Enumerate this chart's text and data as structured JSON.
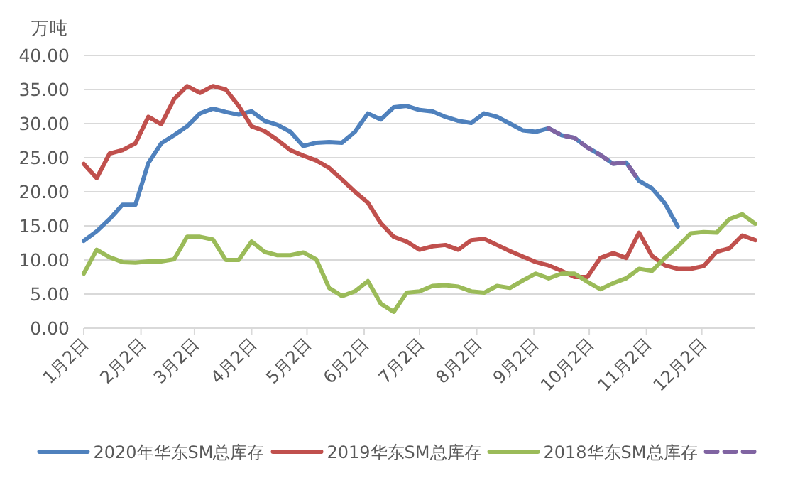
{
  "chart_data": {
    "type": "line",
    "ylabel": "万吨",
    "x": [
      "--01-02",
      "--01-09",
      "--01-16",
      "--01-23",
      "--01-30",
      "--02-06",
      "--02-13",
      "--02-20",
      "--02-27",
      "--03-05",
      "--03-12",
      "--03-19",
      "--03-26",
      "--04-02",
      "--04-09",
      "--04-16",
      "--04-23",
      "--04-30",
      "--05-07",
      "--05-14",
      "--05-21",
      "--05-28",
      "--06-04",
      "--06-11",
      "--06-18",
      "--06-25",
      "--07-02",
      "--07-09",
      "--07-16",
      "--07-23",
      "--07-30",
      "--08-06",
      "--08-13",
      "--08-20",
      "--08-27",
      "--09-03",
      "--09-10",
      "--09-17",
      "--09-24",
      "--10-01",
      "--10-08",
      "--10-15",
      "--10-22",
      "--10-29",
      "--11-05",
      "--11-12",
      "--11-19",
      "--11-26",
      "--12-03",
      "--12-10",
      "--12-17",
      "--12-24",
      "--12-31"
    ],
    "xlim": [
      "--01-02",
      "--12-31"
    ],
    "xticks": [
      {
        "value": "--01-02",
        "label": "1月2日"
      },
      {
        "value": "--02-02",
        "label": "2月2日"
      },
      {
        "value": "--03-02",
        "label": "3月2日"
      },
      {
        "value": "--04-02",
        "label": "4月2日"
      },
      {
        "value": "--05-02",
        "label": "5月2日"
      },
      {
        "value": "--06-02",
        "label": "6月2日"
      },
      {
        "value": "--07-02",
        "label": "7月2日"
      },
      {
        "value": "--08-02",
        "label": "8月2日"
      },
      {
        "value": "--09-02",
        "label": "9月2日"
      },
      {
        "value": "--10-02",
        "label": "10月2日"
      },
      {
        "value": "--11-02",
        "label": "11月2日"
      },
      {
        "value": "--12-02",
        "label": "12月2日"
      }
    ],
    "ylim": [
      0,
      40
    ],
    "yticks": [
      {
        "value": 0,
        "label": "0.00"
      },
      {
        "value": 5,
        "label": "5.00"
      },
      {
        "value": 10,
        "label": "10.00"
      },
      {
        "value": 15,
        "label": "15.00"
      },
      {
        "value": 20,
        "label": "20.00"
      },
      {
        "value": 25,
        "label": "25.00"
      },
      {
        "value": 30,
        "label": "30.00"
      },
      {
        "value": 35,
        "label": "35.00"
      },
      {
        "value": 40,
        "label": "40.00"
      }
    ],
    "grid": "y",
    "legend": "bottom",
    "series": [
      {
        "name": "2020年华东SM总库存",
        "color": "#4f81bd",
        "values": [
          12.8,
          14.2,
          16.0,
          18.1,
          18.1,
          24.2,
          27.1,
          28.3,
          29.6,
          31.5,
          32.2,
          31.7,
          31.3,
          31.8,
          30.4,
          29.8,
          28.8,
          26.7,
          27.2,
          27.3,
          27.2,
          28.8,
          31.5,
          30.6,
          32.4,
          32.6,
          32.0,
          31.8,
          31.0,
          30.4,
          30.1,
          31.5,
          31.0,
          30.0,
          29.0,
          28.8,
          29.3,
          28.3,
          27.9,
          26.5,
          25.4,
          24.1,
          24.3,
          21.6,
          20.5,
          18.3,
          14.9,
          null,
          null,
          null,
          null,
          null,
          null
        ]
      },
      {
        "name": "2019华东SM总库存",
        "color": "#c0504d",
        "values": [
          24.1,
          22.0,
          25.6,
          26.1,
          27.1,
          31.0,
          29.9,
          33.6,
          35.5,
          34.5,
          35.5,
          35.0,
          32.6,
          29.6,
          28.9,
          27.6,
          26.1,
          25.3,
          24.6,
          23.5,
          21.8,
          20.0,
          18.4,
          15.4,
          13.4,
          12.7,
          11.5,
          12.0,
          12.2,
          11.5,
          12.9,
          13.1,
          12.2,
          11.3,
          10.5,
          9.7,
          9.2,
          8.4,
          7.5,
          7.5,
          10.3,
          11.0,
          10.3,
          14.0,
          10.6,
          9.2,
          8.7,
          8.7,
          9.1,
          11.2,
          11.7,
          13.6,
          12.9
        ]
      },
      {
        "name": "2018华东SM总库存",
        "color": "#9bbb59",
        "values": [
          8.0,
          11.5,
          10.4,
          9.7,
          9.6,
          9.8,
          9.8,
          10.1,
          13.4,
          13.4,
          13.0,
          10.0,
          10.0,
          12.7,
          11.2,
          10.7,
          10.7,
          11.1,
          10.1,
          5.9,
          4.7,
          5.4,
          6.9,
          3.6,
          2.4,
          5.2,
          5.4,
          6.2,
          6.3,
          6.1,
          5.4,
          5.2,
          6.2,
          5.9,
          7.0,
          8.0,
          7.3,
          8.0,
          8.0,
          6.8,
          5.7,
          6.6,
          7.3,
          8.7,
          8.4,
          10.3,
          12.0,
          13.9,
          14.1,
          14.0,
          16.0,
          16.7,
          15.3
        ]
      },
      {
        "color": "#8064a2",
        "line_style": "dashed",
        "values": [
          null,
          null,
          null,
          null,
          null,
          null,
          null,
          null,
          null,
          null,
          null,
          null,
          null,
          null,
          null,
          null,
          null,
          null,
          null,
          null,
          null,
          null,
          null,
          null,
          null,
          null,
          null,
          null,
          null,
          null,
          null,
          null,
          null,
          null,
          null,
          null,
          29.3,
          28.3,
          27.9,
          26.5,
          25.4,
          24.1,
          24.3,
          21.6,
          null,
          null,
          null,
          null,
          null,
          null,
          null,
          null,
          null
        ]
      }
    ]
  }
}
